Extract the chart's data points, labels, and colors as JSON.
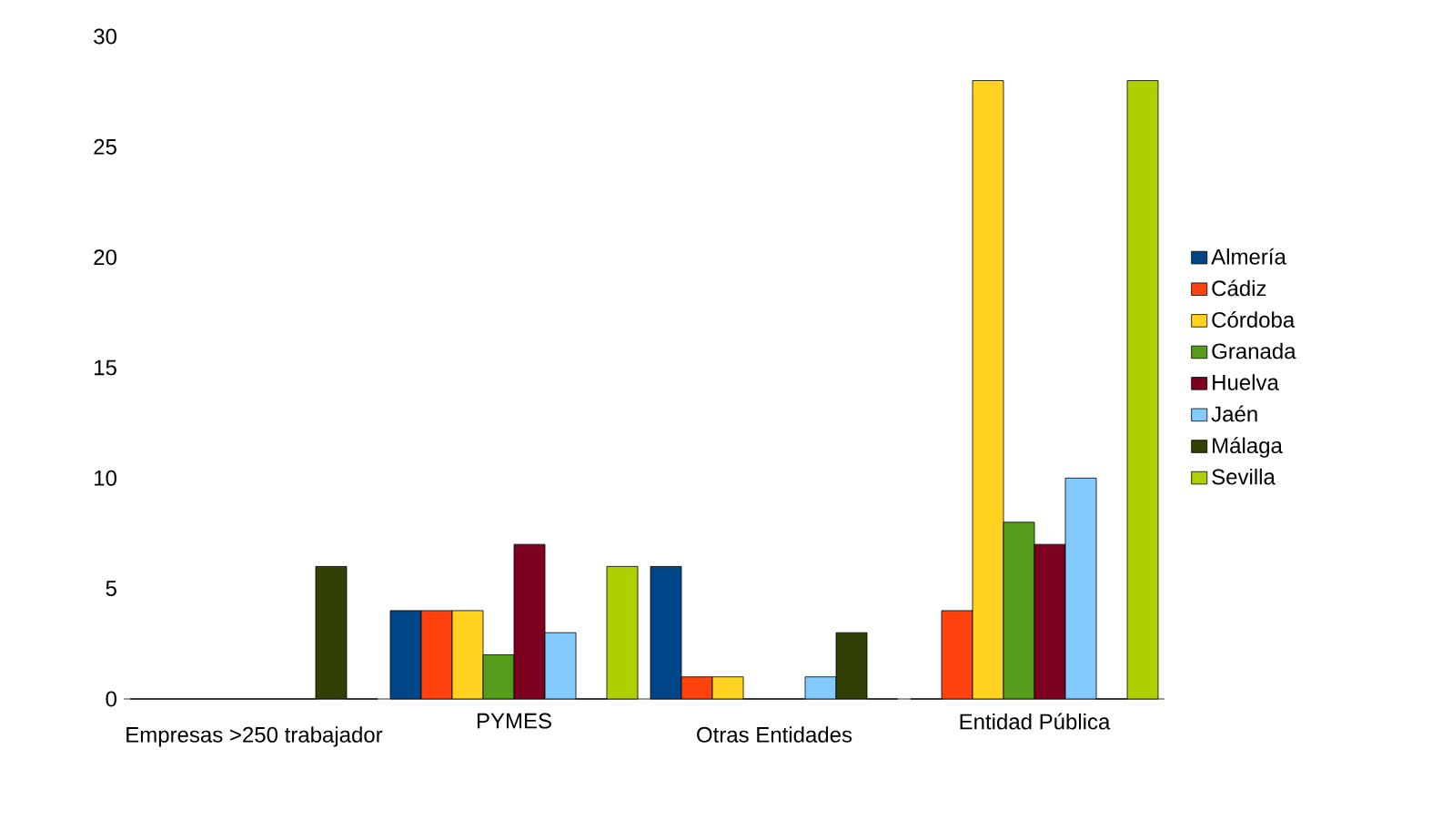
{
  "chart_data": {
    "type": "bar",
    "categories": [
      "Empresas >250 trabajador",
      "PYMES",
      "Otras Entidades",
      "Entidad Pública"
    ],
    "series": [
      {
        "name": "Almería",
        "color": "#004586",
        "values": [
          0,
          4,
          6,
          0
        ]
      },
      {
        "name": "Cádiz",
        "color": "#ff420e",
        "values": [
          0,
          4,
          1,
          4
        ]
      },
      {
        "name": "Córdoba",
        "color": "#ffd320",
        "values": [
          0,
          4,
          1,
          28
        ]
      },
      {
        "name": "Granada",
        "color": "#579d1c",
        "values": [
          0,
          2,
          0,
          8
        ]
      },
      {
        "name": "Huelva",
        "color": "#7e0021",
        "values": [
          0,
          7,
          0,
          7
        ]
      },
      {
        "name": "Jaén",
        "color": "#83caff",
        "values": [
          0,
          3,
          1,
          10
        ]
      },
      {
        "name": "Málaga",
        "color": "#314004",
        "values": [
          6,
          0,
          3,
          0
        ]
      },
      {
        "name": "Sevilla",
        "color": "#aecf00",
        "values": [
          0,
          6,
          0,
          28
        ]
      }
    ],
    "ylim": [
      0,
      30
    ],
    "yticks": [
      0,
      5,
      10,
      15,
      20,
      25,
      30
    ],
    "grid": false,
    "legend": "right"
  }
}
